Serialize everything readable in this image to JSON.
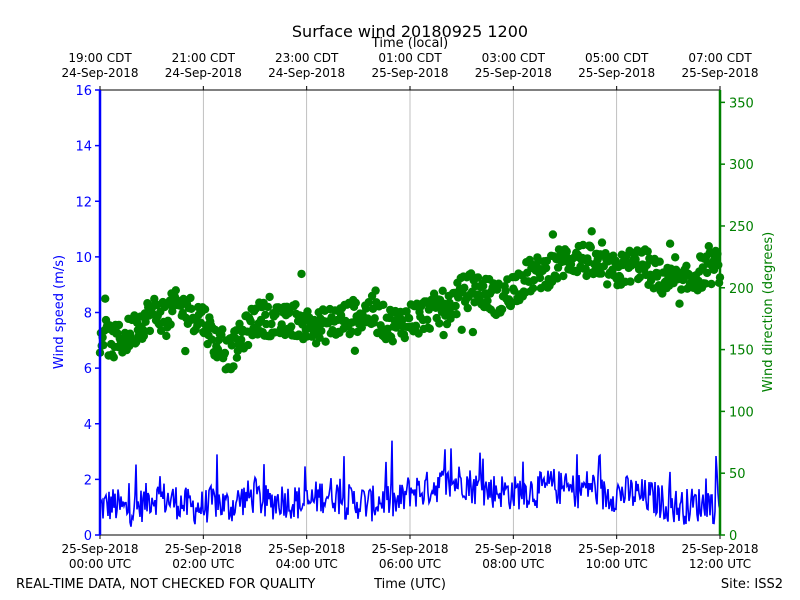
{
  "chart_data": {
    "type": "scatter",
    "title": "Surface wind 20180925 1200",
    "top_axis_label": "Time (local)",
    "xlabel": "Time (UTC)",
    "ylabel_left": "Wind speed (m/s)",
    "ylabel_right": "Wind direction (degrees)",
    "footer_left": "REAL-TIME DATA, NOT CHECKED FOR QUALITY",
    "footer_right": "Site: ISS2",
    "x_range_hours": [
      0,
      12
    ],
    "left_axis": {
      "min": 0,
      "max": 16,
      "ticks": [
        "0",
        "2",
        "4",
        "6",
        "8",
        "10",
        "12",
        "14",
        "16"
      ],
      "color": "#0000ff"
    },
    "right_axis": {
      "min": 0,
      "max": 360,
      "ticks": [
        "0",
        "50",
        "100",
        "150",
        "200",
        "250",
        "300",
        "350"
      ],
      "color": "#008000"
    },
    "bottom_ticks": [
      {
        "hour": 0,
        "date": "25-Sep-2018",
        "time": "00:00 UTC"
      },
      {
        "hour": 2,
        "date": "25-Sep-2018",
        "time": "02:00 UTC"
      },
      {
        "hour": 4,
        "date": "25-Sep-2018",
        "time": "04:00 UTC"
      },
      {
        "hour": 6,
        "date": "25-Sep-2018",
        "time": "06:00 UTC"
      },
      {
        "hour": 8,
        "date": "25-Sep-2018",
        "time": "08:00 UTC"
      },
      {
        "hour": 10,
        "date": "25-Sep-2018",
        "time": "10:00 UTC"
      },
      {
        "hour": 12,
        "date": "25-Sep-2018",
        "time": "12:00 UTC"
      }
    ],
    "top_ticks": [
      {
        "hour": 0,
        "time": "19:00 CDT",
        "date": "24-Sep-2018"
      },
      {
        "hour": 2,
        "time": "21:00 CDT",
        "date": "24-Sep-2018"
      },
      {
        "hour": 4,
        "time": "23:00 CDT",
        "date": "24-Sep-2018"
      },
      {
        "hour": 6,
        "time": "01:00 CDT",
        "date": "25-Sep-2018"
      },
      {
        "hour": 8,
        "time": "03:00 CDT",
        "date": "25-Sep-2018"
      },
      {
        "hour": 10,
        "time": "05:00 CDT",
        "date": "25-Sep-2018"
      },
      {
        "hour": 12,
        "time": "07:00 CDT",
        "date": "25-Sep-2018"
      }
    ],
    "series": [
      {
        "name": "Wind speed (m/s)",
        "axis": "left",
        "style": "line",
        "color": "#0000ff",
        "x": [
          0,
          0.25,
          0.5,
          0.75,
          1,
          1.25,
          1.5,
          1.75,
          2,
          2.25,
          2.5,
          2.75,
          3,
          3.25,
          3.5,
          3.75,
          4,
          4.25,
          4.5,
          4.75,
          5,
          5.25,
          5.5,
          5.75,
          6,
          6.25,
          6.5,
          6.75,
          7,
          7.25,
          7.5,
          7.75,
          8,
          8.25,
          8.5,
          8.75,
          9,
          9.25,
          9.5,
          9.75,
          10,
          10.25,
          10.5,
          10.75,
          11,
          11.25,
          11.5,
          11.75,
          12
        ],
        "values": [
          1.0,
          1.1,
          0.9,
          1.0,
          1.4,
          1.3,
          1.2,
          1.0,
          1.0,
          1.2,
          1.0,
          1.3,
          1.4,
          1.1,
          1.3,
          1.2,
          1.1,
          1.4,
          1.5,
          1.2,
          1.2,
          1.1,
          1.3,
          1.1,
          1.6,
          1.6,
          1.8,
          1.8,
          2.0,
          1.7,
          1.6,
          1.6,
          1.5,
          1.6,
          1.6,
          1.8,
          1.6,
          1.6,
          1.8,
          1.4,
          1.5,
          1.5,
          1.4,
          1.3,
          1.1,
          1.0,
          1.1,
          1.1,
          1.0
        ]
      },
      {
        "name": "Wind direction (degrees)",
        "axis": "right",
        "style": "scatter",
        "color": "#008000",
        "x": [
          0,
          0.25,
          0.5,
          0.75,
          1,
          1.25,
          1.5,
          1.75,
          2,
          2.25,
          2.5,
          2.75,
          3,
          3.25,
          3.5,
          3.75,
          4,
          4.25,
          4.5,
          4.75,
          5,
          5.25,
          5.5,
          5.75,
          6,
          6.25,
          6.5,
          6.75,
          7,
          7.25,
          7.5,
          7.75,
          8,
          8.25,
          8.5,
          8.75,
          9,
          9.25,
          9.5,
          9.75,
          10,
          10.25,
          10.5,
          10.75,
          11,
          11.25,
          11.5,
          11.75,
          12
        ],
        "values": [
          165,
          155,
          160,
          170,
          180,
          178,
          185,
          180,
          175,
          155,
          145,
          160,
          175,
          175,
          170,
          175,
          170,
          168,
          172,
          175,
          178,
          180,
          172,
          170,
          175,
          178,
          182,
          185,
          195,
          200,
          195,
          190,
          200,
          208,
          212,
          215,
          222,
          225,
          220,
          215,
          212,
          218,
          220,
          210,
          205,
          200,
          210,
          215,
          218
        ]
      }
    ]
  }
}
